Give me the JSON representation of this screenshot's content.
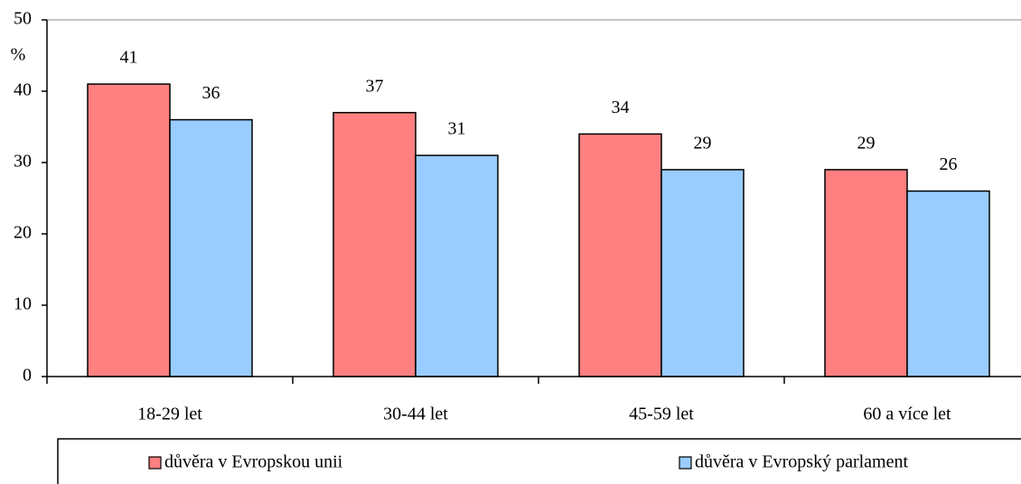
{
  "chart_data": {
    "type": "bar",
    "y_label": "%",
    "categories": [
      "18-29 let",
      "30-44 let",
      "45-59 let",
      "60 a více let"
    ],
    "series": [
      {
        "name": "důvěra v Evropskou unii",
        "color": "#ff8080",
        "values": [
          41,
          37,
          34,
          29
        ]
      },
      {
        "name": "důvěra v Evropský parlament",
        "color": "#99ccff",
        "values": [
          36,
          31,
          29,
          26
        ]
      }
    ],
    "ylim": [
      0,
      50
    ],
    "yticks": [
      0,
      10,
      20,
      30,
      40,
      50
    ],
    "legend": "bottom"
  }
}
